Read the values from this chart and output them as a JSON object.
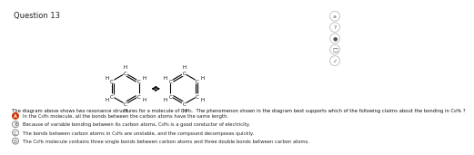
{
  "title": "Question 13",
  "description_text": "The diagram above shows two resonance structures for a molecule of C₆H₆.  The phenomenon shown in the diagram best supports which of the following claims about the bonding in C₆H₆ ?",
  "options": [
    {
      "letter": "A",
      "fill": "#cc3300",
      "border": "#cc3300",
      "text": "In the C₆H₆ molecule, all the bonds between the carbon atoms have the same length."
    },
    {
      "letter": "B",
      "fill": "#ffffff",
      "border": "#888888",
      "text": "Because of variable bonding between its carbon atoms, C₆H₆ is a good conductor of electricity."
    },
    {
      "letter": "C",
      "fill": "#ffffff",
      "border": "#888888",
      "text": "The bonds between carbon atoms in C₆H₆ are unstable, and the compound decomposes quickly."
    },
    {
      "letter": "D",
      "fill": "#ffffff",
      "border": "#888888",
      "text": "The C₆H₆ molecule contains three single bonds between carbon atoms and three double bonds between carbon atoms."
    }
  ],
  "sidebar_icons": [
    "a",
    "?",
    "●",
    "□",
    "✓"
  ],
  "background_color": "#ffffff",
  "text_color": "#000000"
}
